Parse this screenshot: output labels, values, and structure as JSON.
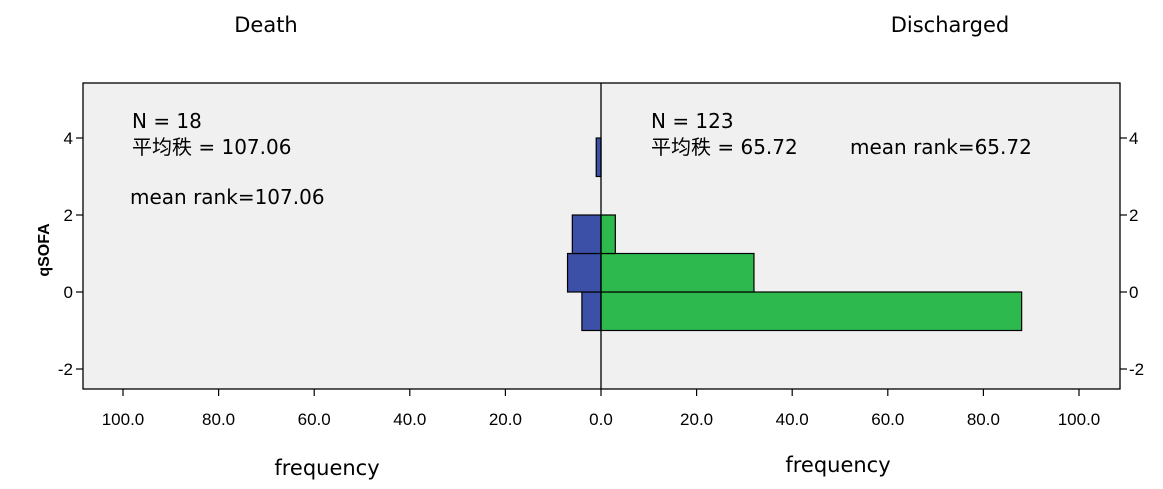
{
  "chart_data": {
    "type": "bar",
    "orientation": "horizontal",
    "layout": "population-pyramid",
    "ylabel": "qSOFA",
    "ylim": [
      -2.5,
      5.4
    ],
    "y_ticks": [
      "4",
      "2",
      "0",
      "-2"
    ],
    "x_ticks": [
      "100.0",
      "80.0",
      "60.0",
      "40.0",
      "20.0",
      "0.0",
      "20.0",
      "40.0",
      "60.0",
      "80.0",
      "100.0"
    ],
    "xlim": [
      -100,
      100
    ],
    "grid": false,
    "categories": [
      -0.5,
      0.5,
      1.5,
      2.5,
      3.5
    ],
    "bin_width": 1,
    "series": [
      {
        "name": "Death",
        "side": "left",
        "color": "#3d50a8",
        "values": [
          4,
          7,
          6,
          0,
          1
        ],
        "xlabel": "frequency",
        "stats": {
          "n_label": "N = 18",
          "rank_label": "平均秩 = 107.06",
          "mean_rank_label": "mean rank=107.06"
        }
      },
      {
        "name": "Discharged",
        "side": "right",
        "color": "#2db94d",
        "values": [
          88,
          32,
          3,
          0,
          0
        ],
        "xlabel": "frequency",
        "stats": {
          "n_label": "N = 123",
          "rank_label": "平均秩 = 65.72",
          "mean_rank_label": "mean rank=65.72"
        }
      }
    ],
    "panel_color": "#f0f0f0"
  }
}
